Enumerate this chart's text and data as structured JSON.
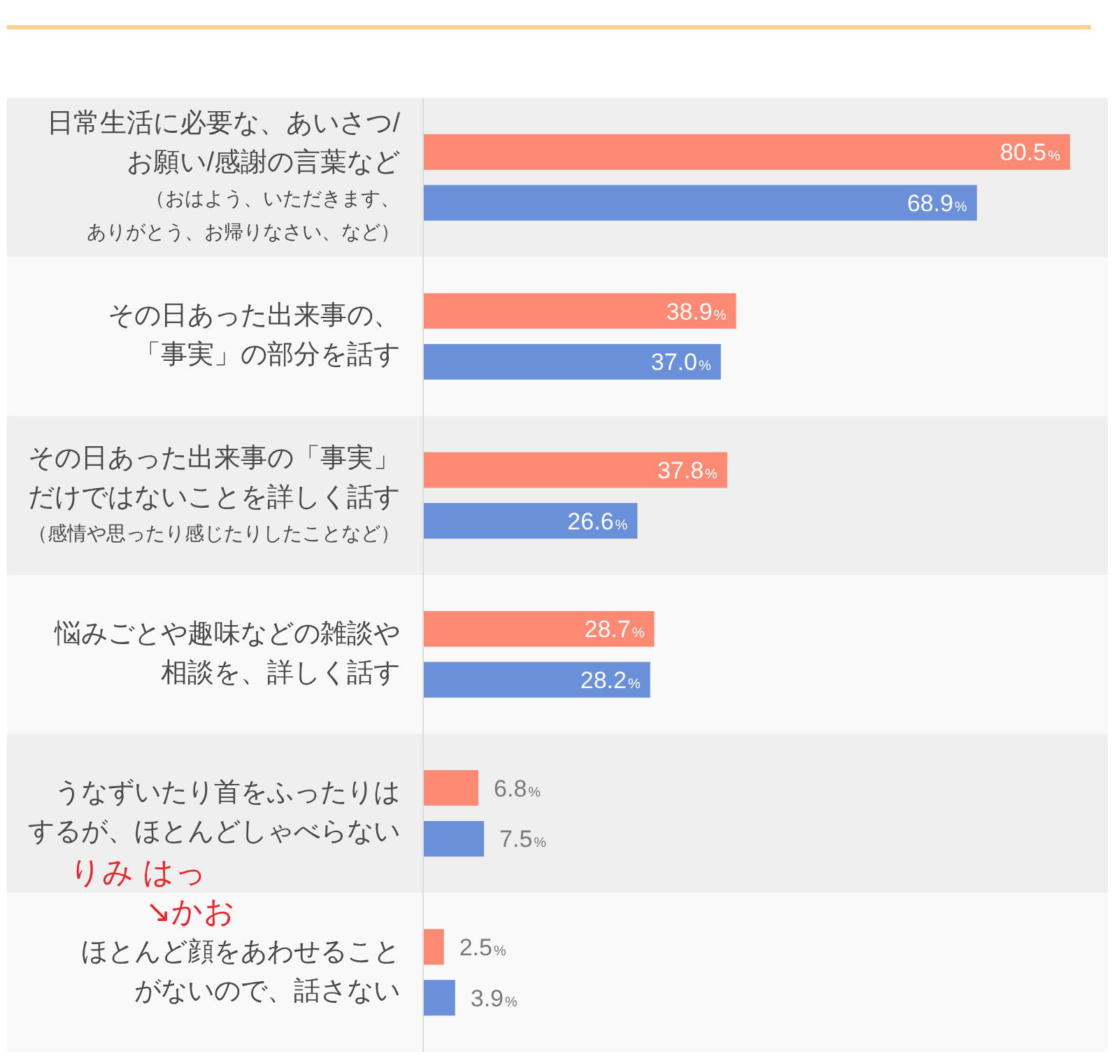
{
  "chart_data": {
    "type": "bar",
    "orientation": "horizontal",
    "categories": [
      "日常生活に必要な、あいさつ/お願い/感謝の言葉など（おはよう、いただきます、ありがとう、お帰りなさい、など）",
      "その日あった出来事の、「事実」の部分を話す",
      "その日あった出来事の「事実」だけではないことを詳しく話す（感情や思ったり感じたりしたことなど）",
      "悩みごとや趣味などの雑談や相談を、詳しく話す",
      "うなずいたり首をふったりはするが、ほとんどしゃべらない",
      "ほとんど顔をあわせることがないので、話さない"
    ],
    "series": [
      {
        "color": "#fe8a73",
        "values": [
          80.5,
          38.9,
          37.8,
          28.7,
          6.8,
          2.5
        ],
        "value_labels": [
          "80.5%",
          "38.9%",
          "37.8%",
          "28.7%",
          "6.8%",
          "2.5%"
        ]
      },
      {
        "color": "#6990d8",
        "values": [
          68.9,
          37.0,
          26.6,
          28.2,
          7.5,
          3.9
        ],
        "value_labels": [
          "68.9%",
          "37.0%",
          "26.6%",
          "28.2%",
          "7.5%",
          "3.9%"
        ]
      }
    ],
    "tick_labels": "y",
    "annotations": [
      "りみ はっ",
      "↘かお"
    ]
  }
}
